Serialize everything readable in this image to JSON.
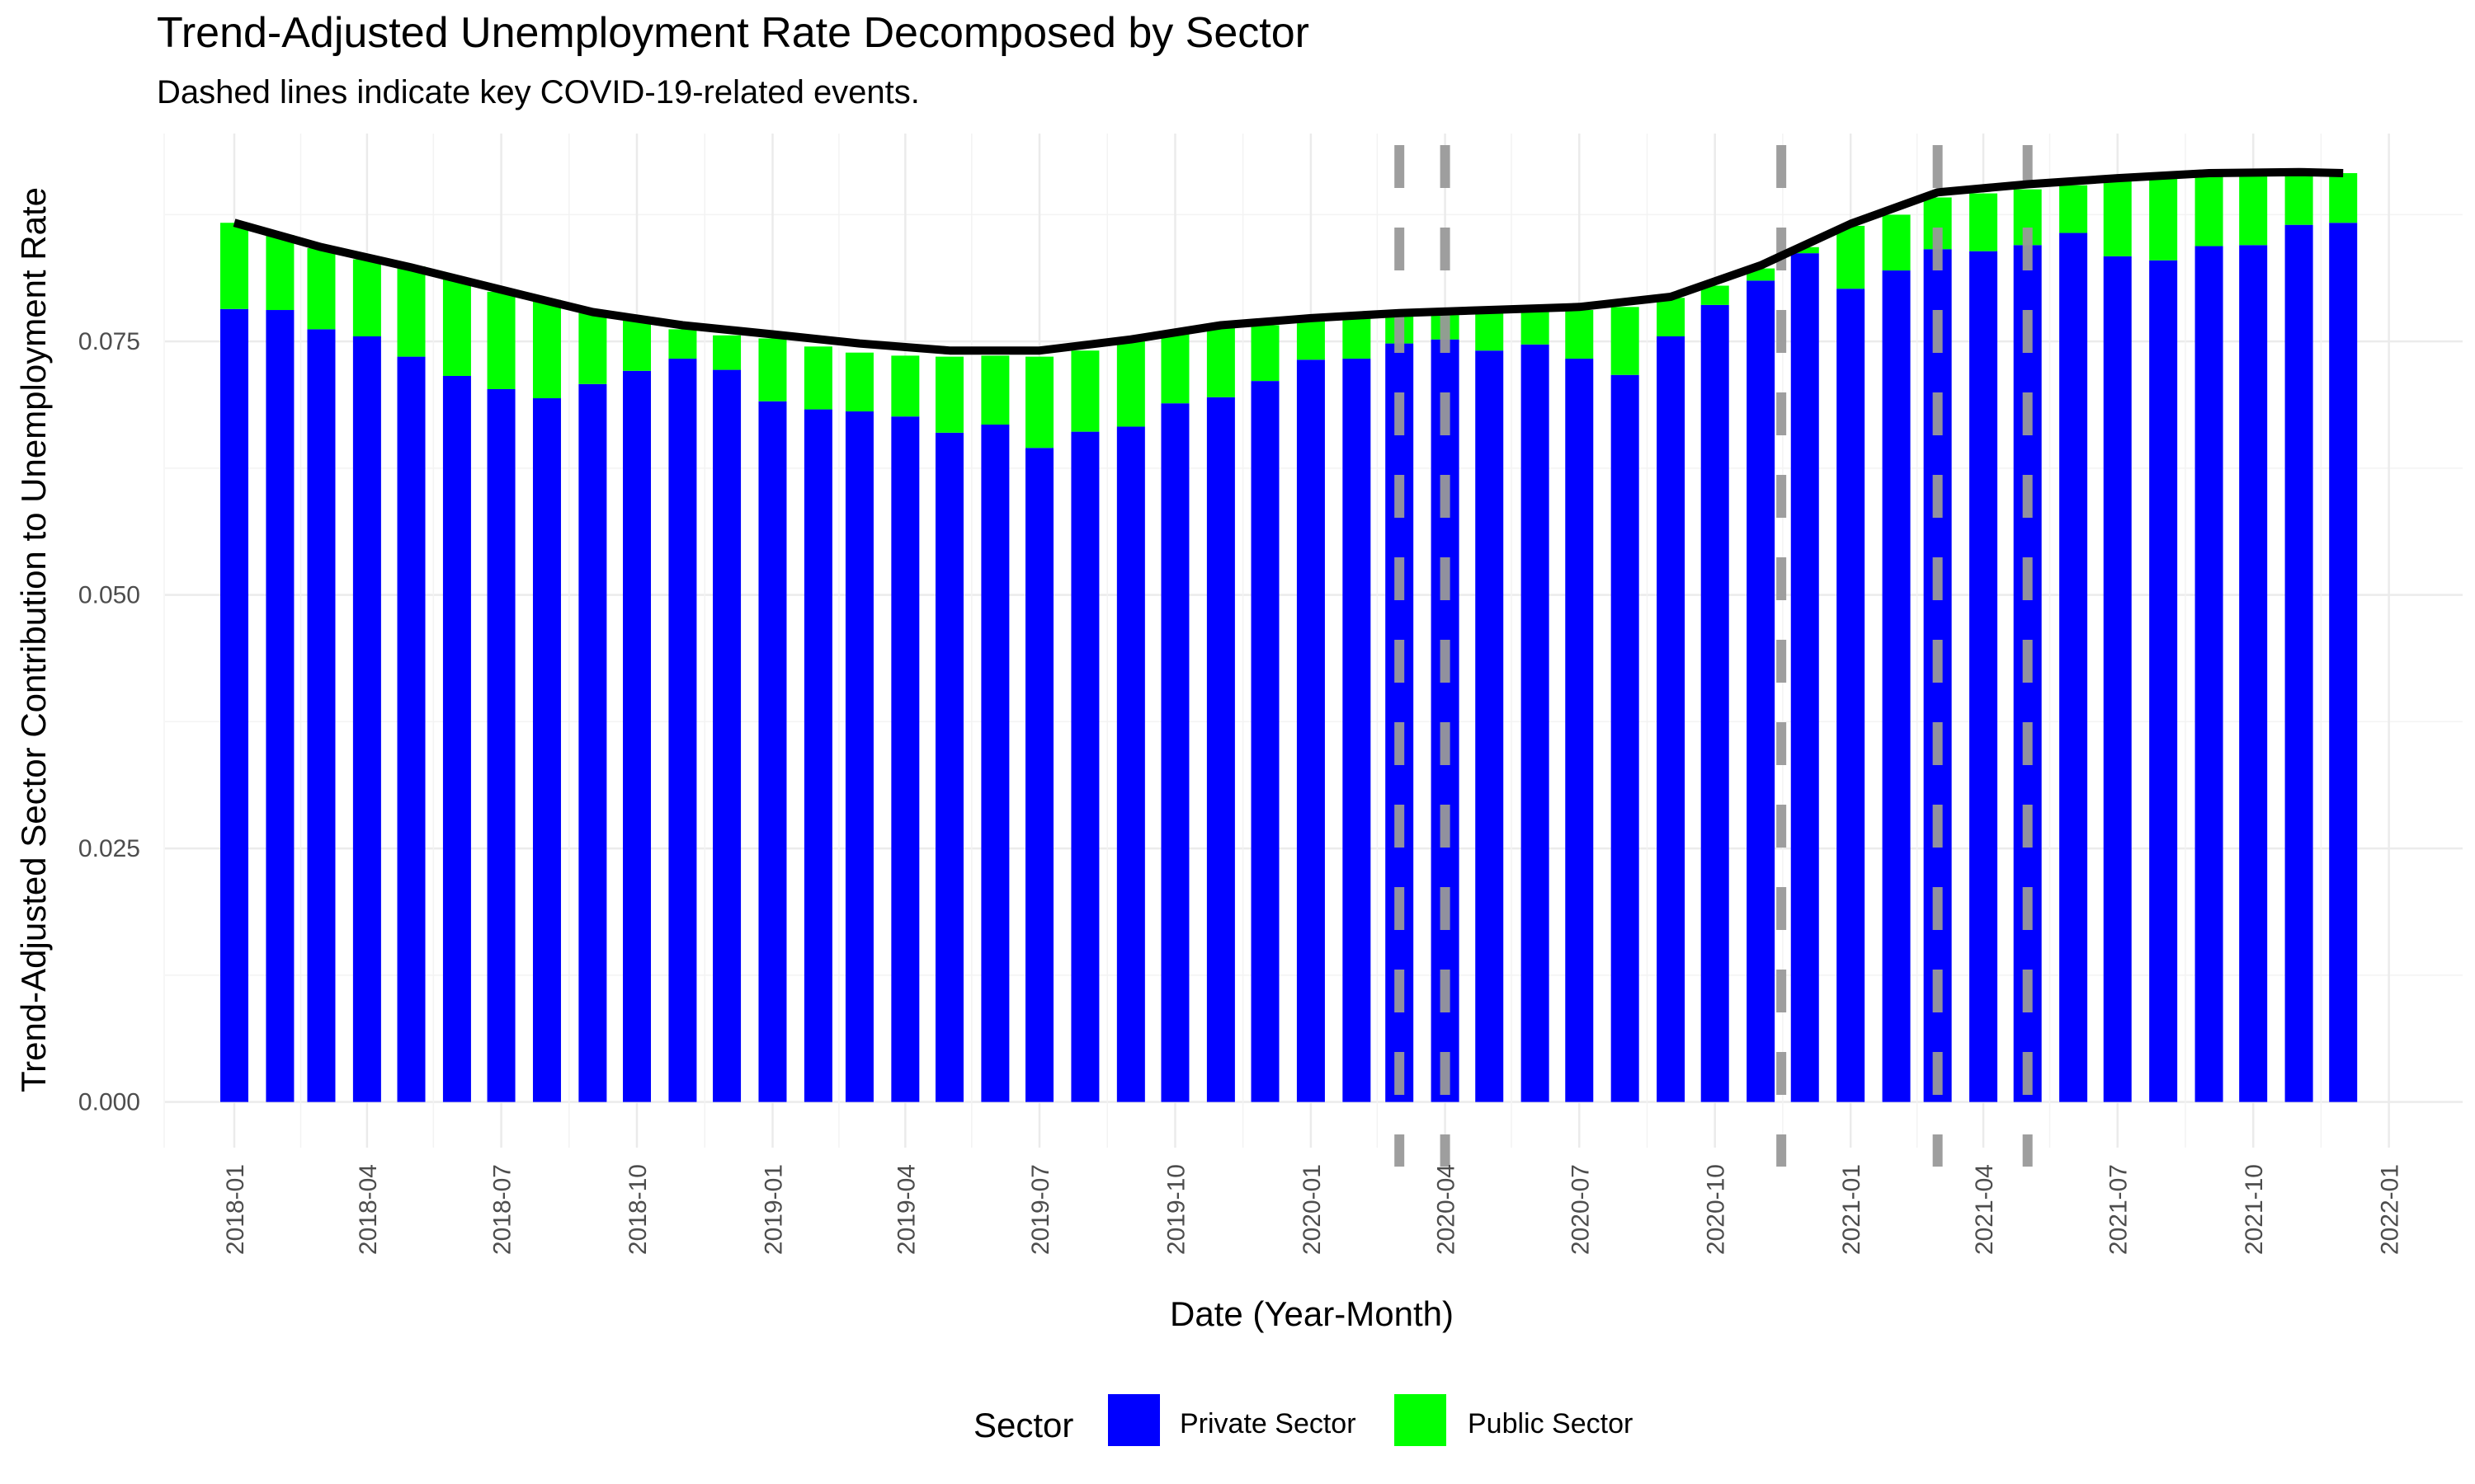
{
  "chart_data": {
    "type": "bar",
    "stacked": true,
    "title": "Trend-Adjusted Unemployment Rate Decomposed by Sector",
    "subtitle": "Dashed lines indicate key COVID-19-related events.",
    "xlabel": "Date (Year-Month)",
    "ylabel": "Trend-Adjusted Sector Contribution to Unemployment Rate",
    "ylim": [
      -0.0045,
      0.0955
    ],
    "y_ticks": [
      0.0,
      0.025,
      0.05,
      0.075
    ],
    "y_tick_labels": [
      "0.000",
      "0.025",
      "0.050",
      "0.075"
    ],
    "x_ticks": [
      "2018-01",
      "2018-04",
      "2018-07",
      "2018-10",
      "2019-01",
      "2019-04",
      "2019-07",
      "2019-10",
      "2020-01",
      "2020-04",
      "2020-07",
      "2020-10",
      "2021-01",
      "2021-04",
      "2021-07",
      "2021-10",
      "2022-01"
    ],
    "x_range": [
      "2017-11-15",
      "2022-02-20"
    ],
    "grid": true,
    "legend": {
      "title": "Sector",
      "position": "bottom"
    },
    "dates": [
      "2018-01",
      "2018-02",
      "2018-03",
      "2018-04",
      "2018-05",
      "2018-06",
      "2018-07",
      "2018-08",
      "2018-09",
      "2018-10",
      "2018-11",
      "2018-12",
      "2019-01",
      "2019-02",
      "2019-03",
      "2019-04",
      "2019-05",
      "2019-06",
      "2019-07",
      "2019-08",
      "2019-09",
      "2019-10",
      "2019-11",
      "2019-12",
      "2020-01",
      "2020-02",
      "2020-03",
      "2020-04",
      "2020-05",
      "2020-06",
      "2020-07",
      "2020-08",
      "2020-09",
      "2020-10",
      "2020-11",
      "2020-12",
      "2021-01",
      "2021-02",
      "2021-03",
      "2021-04",
      "2021-05",
      "2021-06",
      "2021-07",
      "2021-08",
      "2021-09",
      "2021-10",
      "2021-11",
      "2021-12"
    ],
    "series": [
      {
        "name": "Private Sector",
        "color": "#0000FF",
        "values": [
          0.0782,
          0.0781,
          0.0762,
          0.0755,
          0.0735,
          0.0716,
          0.0703,
          0.0694,
          0.0708,
          0.0721,
          0.0733,
          0.0722,
          0.0691,
          0.0683,
          0.0681,
          0.0676,
          0.066,
          0.0668,
          0.0645,
          0.0661,
          0.0666,
          0.0689,
          0.0695,
          0.0711,
          0.0732,
          0.0733,
          0.0748,
          0.0752,
          0.0741,
          0.0747,
          0.0733,
          0.0717,
          0.0755,
          0.0786,
          0.081,
          0.0837,
          0.0802,
          0.082,
          0.0841,
          0.0839,
          0.0845,
          0.0857,
          0.0834,
          0.083,
          0.0844,
          0.0845,
          0.0865,
          0.0867
        ]
      },
      {
        "name": "Public Sector",
        "color": "#00FF00",
        "values": [
          0.0085,
          0.0074,
          0.008,
          0.0076,
          0.0089,
          0.0096,
          0.0096,
          0.0097,
          0.007,
          0.0051,
          0.0029,
          0.0034,
          0.0062,
          0.0062,
          0.0058,
          0.006,
          0.0075,
          0.0068,
          0.009,
          0.008,
          0.0087,
          0.0069,
          0.007,
          0.0055,
          0.0038,
          0.0043,
          0.0028,
          0.0024,
          0.0039,
          0.0032,
          0.0048,
          0.0067,
          0.0038,
          0.0019,
          0.0012,
          0.0006,
          0.0062,
          0.0055,
          0.0051,
          0.0057,
          0.0055,
          0.0047,
          0.0074,
          0.0086,
          0.0074,
          0.0075,
          0.0053,
          0.0049
        ]
      }
    ],
    "trend_line": {
      "color": "#000000",
      "dates": [
        "2018-01",
        "2018-03",
        "2018-05",
        "2018-07",
        "2018-09",
        "2018-11",
        "2019-01",
        "2019-03",
        "2019-05",
        "2019-07",
        "2019-09",
        "2019-11",
        "2020-01",
        "2020-03",
        "2020-05",
        "2020-07",
        "2020-09",
        "2020-11",
        "2021-01",
        "2021-03",
        "2021-05",
        "2021-07",
        "2021-09",
        "2021-11",
        "2021-12"
      ],
      "values": [
        0.0867,
        0.0843,
        0.0823,
        0.0801,
        0.0779,
        0.0766,
        0.0757,
        0.0748,
        0.0741,
        0.0741,
        0.0752,
        0.0766,
        0.0773,
        0.0778,
        0.0781,
        0.0784,
        0.0794,
        0.0825,
        0.0866,
        0.0897,
        0.0905,
        0.0911,
        0.0916,
        0.0917,
        0.0916
      ]
    },
    "event_lines": {
      "style": "dashed",
      "color": "#999999",
      "dates": [
        "2020-03-01",
        "2020-04-01",
        "2020-11-15",
        "2021-03-01",
        "2021-05-01"
      ]
    }
  }
}
